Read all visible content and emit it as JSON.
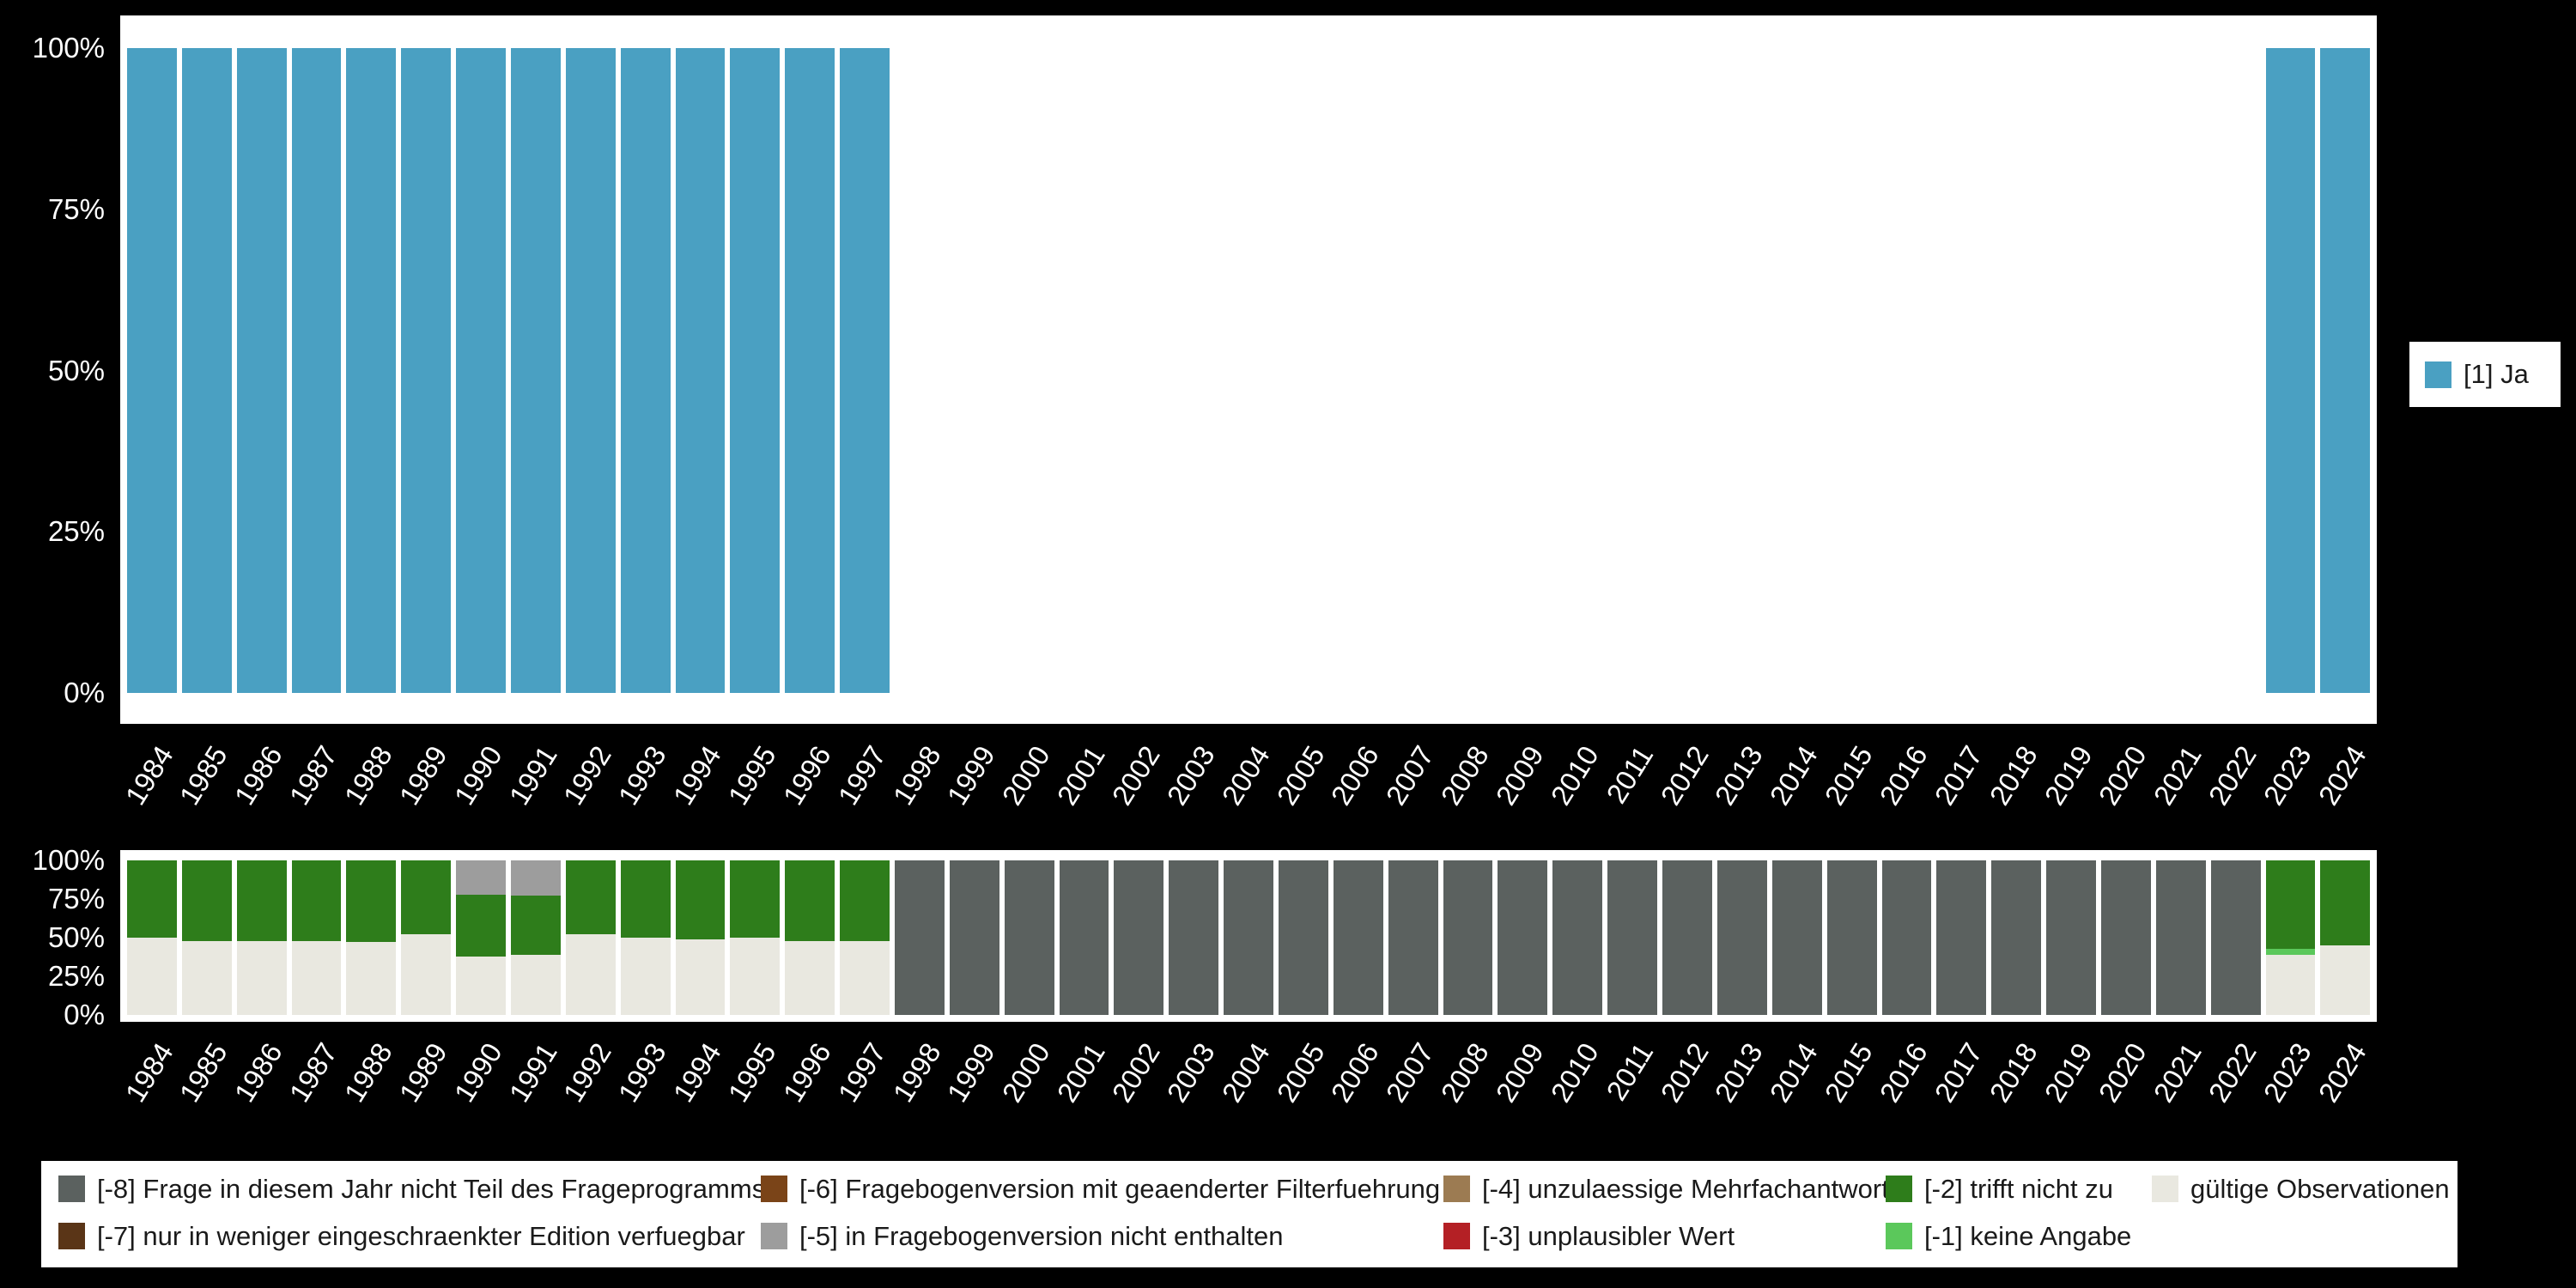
{
  "page": {
    "background": "#000000",
    "plot_background": "#ffffff",
    "axis_text_color": "#ffffff"
  },
  "chart_data": [
    {
      "type": "bar",
      "stacked": true,
      "name": "frequencies-by-year",
      "title": "",
      "xlabel": "",
      "ylabel": "",
      "ylim": [
        0,
        100
      ],
      "grid": false,
      "legend_position": "right",
      "y_ticks": [
        "100%",
        "75%",
        "50%",
        "25%",
        "0%"
      ],
      "categories": [
        "1984",
        "1985",
        "1986",
        "1987",
        "1988",
        "1989",
        "1990",
        "1991",
        "1992",
        "1993",
        "1994",
        "1995",
        "1996",
        "1997",
        "1998",
        "1999",
        "2000",
        "2001",
        "2002",
        "2003",
        "2004",
        "2005",
        "2006",
        "2007",
        "2008",
        "2009",
        "2010",
        "2011",
        "2012",
        "2013",
        "2014",
        "2015",
        "2016",
        "2017",
        "2018",
        "2019",
        "2020",
        "2021",
        "2022",
        "2023",
        "2024"
      ],
      "series": [
        {
          "name": "[1] Ja",
          "color": "#4aa0c2",
          "values": [
            100,
            100,
            100,
            100,
            100,
            100,
            100,
            100,
            100,
            100,
            100,
            100,
            100,
            100,
            0,
            0,
            0,
            0,
            0,
            0,
            0,
            0,
            0,
            0,
            0,
            0,
            0,
            0,
            0,
            0,
            0,
            0,
            0,
            0,
            0,
            0,
            0,
            0,
            0,
            100,
            100
          ]
        }
      ]
    },
    {
      "type": "bar",
      "stacked": true,
      "name": "missings-by-year",
      "title": "",
      "xlabel": "",
      "ylabel": "",
      "ylim": [
        0,
        100
      ],
      "grid": false,
      "legend_position": "bottom",
      "y_ticks": [
        "100%",
        "75%",
        "50%",
        "25%",
        "0%"
      ],
      "categories": [
        "1984",
        "1985",
        "1986",
        "1987",
        "1988",
        "1989",
        "1990",
        "1991",
        "1992",
        "1993",
        "1994",
        "1995",
        "1996",
        "1997",
        "1998",
        "1999",
        "2000",
        "2001",
        "2002",
        "2003",
        "2004",
        "2005",
        "2006",
        "2007",
        "2008",
        "2009",
        "2010",
        "2011",
        "2012",
        "2013",
        "2014",
        "2015",
        "2016",
        "2017",
        "2018",
        "2019",
        "2020",
        "2021",
        "2022",
        "2023",
        "2024"
      ],
      "series": [
        {
          "name": "[-8] Frage in diesem Jahr nicht Teil des Frageprogramms",
          "color": "#5b615f",
          "values": [
            0,
            0,
            0,
            0,
            0,
            0,
            0,
            0,
            0,
            0,
            0,
            0,
            0,
            0,
            100,
            100,
            100,
            100,
            100,
            100,
            100,
            100,
            100,
            100,
            100,
            100,
            100,
            100,
            100,
            100,
            100,
            100,
            100,
            100,
            100,
            100,
            100,
            100,
            100,
            0,
            0
          ]
        },
        {
          "name": "[-7] nur in weniger eingeschraenkter Edition verfuegbar",
          "color": "#5a3517",
          "values": [
            0,
            0,
            0,
            0,
            0,
            0,
            0,
            0,
            0,
            0,
            0,
            0,
            0,
            0,
            0,
            0,
            0,
            0,
            0,
            0,
            0,
            0,
            0,
            0,
            0,
            0,
            0,
            0,
            0,
            0,
            0,
            0,
            0,
            0,
            0,
            0,
            0,
            0,
            0,
            0,
            0
          ]
        },
        {
          "name": "[-6] Fragebogenversion mit geaenderter Filterfuehrung",
          "color": "#7a4418",
          "values": [
            0,
            0,
            0,
            0,
            0,
            0,
            0,
            0,
            0,
            0,
            0,
            0,
            0,
            0,
            0,
            0,
            0,
            0,
            0,
            0,
            0,
            0,
            0,
            0,
            0,
            0,
            0,
            0,
            0,
            0,
            0,
            0,
            0,
            0,
            0,
            0,
            0,
            0,
            0,
            0,
            0
          ]
        },
        {
          "name": "[-5] in Fragebogenversion nicht enthalten",
          "color": "#9d9d9d",
          "values": [
            0,
            0,
            0,
            0,
            0,
            0,
            22,
            23,
            0,
            0,
            0,
            0,
            0,
            0,
            0,
            0,
            0,
            0,
            0,
            0,
            0,
            0,
            0,
            0,
            0,
            0,
            0,
            0,
            0,
            0,
            0,
            0,
            0,
            0,
            0,
            0,
            0,
            0,
            0,
            0,
            0
          ]
        },
        {
          "name": "[-4] unzulaessige Mehrfachantwort",
          "color": "#9c7b52",
          "values": [
            0,
            0,
            0,
            0,
            0,
            0,
            0,
            0,
            0,
            0,
            0,
            0,
            0,
            0,
            0,
            0,
            0,
            0,
            0,
            0,
            0,
            0,
            0,
            0,
            0,
            0,
            0,
            0,
            0,
            0,
            0,
            0,
            0,
            0,
            0,
            0,
            0,
            0,
            0,
            0,
            0
          ]
        },
        {
          "name": "[-3] unplausibler Wert",
          "color": "#b42025",
          "values": [
            0,
            0,
            0,
            0,
            0,
            0,
            0,
            0,
            0,
            0,
            0,
            0,
            0,
            0,
            0,
            0,
            0,
            0,
            0,
            0,
            0,
            0,
            0,
            0,
            0,
            0,
            0,
            0,
            0,
            0,
            0,
            0,
            0,
            0,
            0,
            0,
            0,
            0,
            0,
            0,
            0
          ]
        },
        {
          "name": "[-2] trifft nicht zu",
          "color": "#2e7d1b",
          "values": [
            50,
            52,
            52,
            52,
            53,
            48,
            40,
            38,
            48,
            50,
            51,
            50,
            52,
            52,
            0,
            0,
            0,
            0,
            0,
            0,
            0,
            0,
            0,
            0,
            0,
            0,
            0,
            0,
            0,
            0,
            0,
            0,
            0,
            0,
            0,
            0,
            0,
            0,
            0,
            57,
            55
          ]
        },
        {
          "name": "[-1] keine Angabe",
          "color": "#5bc85b",
          "values": [
            0,
            0,
            0,
            0,
            0,
            0,
            0,
            0,
            0,
            0,
            0,
            0,
            0,
            0,
            0,
            0,
            0,
            0,
            0,
            0,
            0,
            0,
            0,
            0,
            0,
            0,
            0,
            0,
            0,
            0,
            0,
            0,
            0,
            0,
            0,
            0,
            0,
            0,
            0,
            4,
            0
          ]
        },
        {
          "name": "gültige Observationen",
          "color": "#e9e8e0",
          "values": [
            50,
            48,
            48,
            48,
            47,
            52,
            38,
            39,
            52,
            50,
            49,
            50,
            48,
            48,
            0,
            0,
            0,
            0,
            0,
            0,
            0,
            0,
            0,
            0,
            0,
            0,
            0,
            0,
            0,
            0,
            0,
            0,
            0,
            0,
            0,
            0,
            0,
            0,
            0,
            39,
            45
          ]
        }
      ]
    }
  ],
  "legend_top": {
    "items": [
      {
        "label": "[1] Ja",
        "color": "#4aa0c2"
      }
    ]
  },
  "legend_bottom": {
    "columns": [
      [
        {
          "label": "[-8] Frage in diesem Jahr nicht Teil des Frageprogramms",
          "color": "#5b615f"
        },
        {
          "label": "[-7] nur in weniger eingeschraenkter Edition verfuegbar",
          "color": "#5a3517"
        }
      ],
      [
        {
          "label": "[-6] Fragebogenversion mit geaenderter Filterfuehrung",
          "color": "#7a4418"
        },
        {
          "label": "[-5] in Fragebogenversion nicht enthalten",
          "color": "#9d9d9d"
        }
      ],
      [
        {
          "label": "[-4] unzulaessige Mehrfachantwort",
          "color": "#9c7b52"
        },
        {
          "label": "[-3] unplausibler Wert",
          "color": "#b42025"
        }
      ],
      [
        {
          "label": "[-2] trifft nicht zu",
          "color": "#2e7d1b"
        },
        {
          "label": "[-1] keine Angabe",
          "color": "#5bc85b"
        }
      ],
      [
        {
          "label": "gültige Observationen",
          "color": "#e9e8e0"
        }
      ]
    ]
  }
}
